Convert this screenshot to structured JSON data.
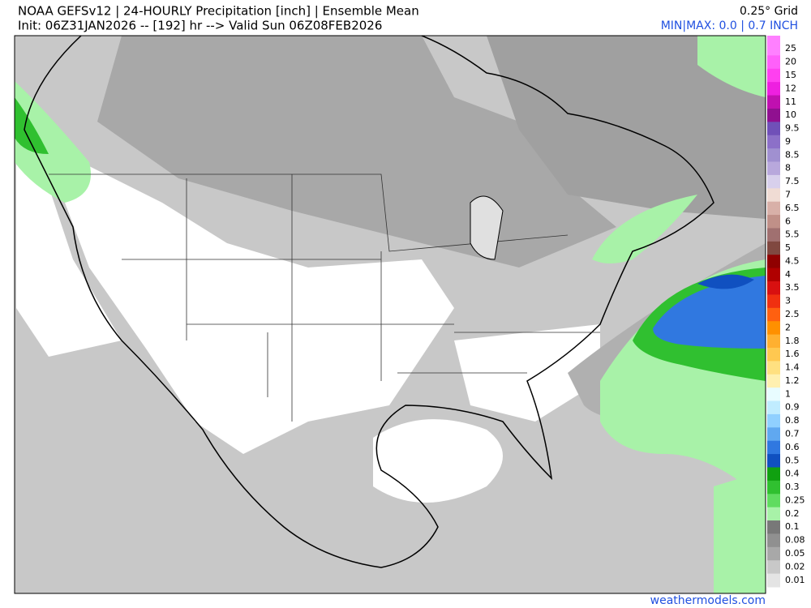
{
  "header": {
    "title": "NOAA GEFSv12 | 24-HOURLY Precipitation [inch] | Ensemble Mean",
    "init": "Init: 06Z31JAN2026 -- [192] hr --> Valid Sun 06Z08FEB2026",
    "grid": "0.25° Grid",
    "minmax": "MIN|MAX: 0.0 | 0.7 INCH"
  },
  "colorbar": {
    "levels": [
      {
        "label": "25",
        "color": "#ff80ff"
      },
      {
        "label": "20",
        "color": "#ff60fa"
      },
      {
        "label": "15",
        "color": "#ff40f0"
      },
      {
        "label": "12",
        "color": "#ee20e0"
      },
      {
        "label": "11",
        "color": "#c010b0"
      },
      {
        "label": "10",
        "color": "#901090"
      },
      {
        "label": "9.5",
        "color": "#7050b8"
      },
      {
        "label": "9",
        "color": "#8c70c8"
      },
      {
        "label": "8.5",
        "color": "#a090d0"
      },
      {
        "label": "8",
        "color": "#b8a8dc"
      },
      {
        "label": "7.5",
        "color": "#d8d0ec"
      },
      {
        "label": "7",
        "color": "#f0dcd4"
      },
      {
        "label": "6.5",
        "color": "#d8b0a8"
      },
      {
        "label": "6",
        "color": "#c09088"
      },
      {
        "label": "5.5",
        "color": "#a07070"
      },
      {
        "label": "5",
        "color": "#804840"
      },
      {
        "label": "4.5",
        "color": "#900000"
      },
      {
        "label": "4",
        "color": "#b00000"
      },
      {
        "label": "3.5",
        "color": "#d81010"
      },
      {
        "label": "3",
        "color": "#f03010"
      },
      {
        "label": "2.5",
        "color": "#ff6010"
      },
      {
        "label": "2",
        "color": "#ff9000"
      },
      {
        "label": "1.8",
        "color": "#ffb030"
      },
      {
        "label": "1.6",
        "color": "#ffc850"
      },
      {
        "label": "1.4",
        "color": "#ffe080"
      },
      {
        "label": "1.2",
        "color": "#fff0b0"
      },
      {
        "label": "1",
        "color": "#e8fcff"
      },
      {
        "label": "0.9",
        "color": "#c0ecff"
      },
      {
        "label": "0.8",
        "color": "#90d0ff"
      },
      {
        "label": "0.7",
        "color": "#60a8f0"
      },
      {
        "label": "0.6",
        "color": "#3078e0"
      },
      {
        "label": "0.5",
        "color": "#1050c0"
      },
      {
        "label": "0.4",
        "color": "#10a010"
      },
      {
        "label": "0.3",
        "color": "#30c030"
      },
      {
        "label": "0.25",
        "color": "#60dc60"
      },
      {
        "label": "0.2",
        "color": "#a8f2a8"
      },
      {
        "label": "0.1",
        "color": "#787878"
      },
      {
        "label": "0.08",
        "color": "#909090"
      },
      {
        "label": "0.05",
        "color": "#a8a8a8"
      },
      {
        "label": "0.02",
        "color": "#c8c8c8"
      },
      {
        "label": "0.01",
        "color": "#e4e4e4"
      }
    ]
  },
  "footer": {
    "credit": "weathermodels.com"
  }
}
